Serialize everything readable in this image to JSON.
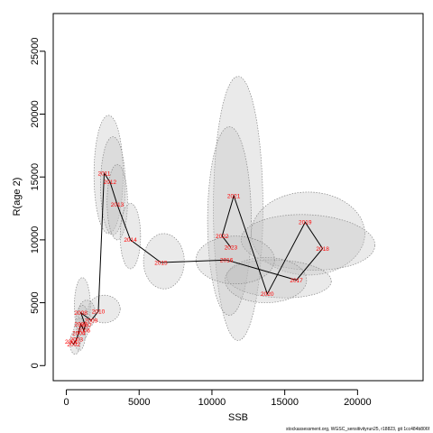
{
  "chart_data": {
    "type": "scatter",
    "title": "",
    "xlabel": "SSB",
    "ylabel": "R(age 2)",
    "xlim": [
      -900,
      24500
    ],
    "ylim": [
      -1200,
      28000
    ],
    "x_ticks": [
      0,
      5000,
      10000,
      15000,
      20000
    ],
    "y_ticks": [
      0,
      5000,
      10000,
      15000,
      20000,
      25000
    ],
    "grid": false,
    "connect_points": true,
    "colors": {
      "line": "#000000",
      "labels": "#ff0000",
      "ellipse_fill": "#bebebe",
      "ellipse_stroke": "#888888"
    },
    "points": [
      {
        "year": "2001",
        "x": 350,
        "y": 1900
      },
      {
        "year": "2002",
        "x": 500,
        "y": 1700
      },
      {
        "year": "2003",
        "x": 700,
        "y": 2100
      },
      {
        "year": "2004",
        "x": 850,
        "y": 2600
      },
      {
        "year": "2005",
        "x": 1000,
        "y": 3300
      },
      {
        "year": "2006",
        "x": 1200,
        "y": 2800
      },
      {
        "year": "2007",
        "x": 1300,
        "y": 3200
      },
      {
        "year": "2008",
        "x": 1000,
        "y": 4200
      },
      {
        "year": "2009",
        "x": 1700,
        "y": 3600
      },
      {
        "year": "2010",
        "x": 2200,
        "y": 4300
      },
      {
        "year": "2011",
        "x": 2600,
        "y": 15300
      },
      {
        "year": "2012",
        "x": 3000,
        "y": 14600
      },
      {
        "year": "2013",
        "x": 3500,
        "y": 12800
      },
      {
        "year": "2014",
        "x": 4400,
        "y": 10000
      },
      {
        "year": "2015",
        "x": 6500,
        "y": 8200
      },
      {
        "year": "2016",
        "x": 11000,
        "y": 8400
      },
      {
        "year": "2017",
        "x": 15800,
        "y": 6800
      },
      {
        "year": "2018",
        "x": 17600,
        "y": 9300
      },
      {
        "year": "2019",
        "x": 16400,
        "y": 11400
      },
      {
        "year": "2020",
        "x": 13800,
        "y": 5700
      },
      {
        "year": "2021",
        "x": 11500,
        "y": 13500
      },
      {
        "year": "2022",
        "x": 10700,
        "y": 10300
      },
      {
        "year": "2023",
        "x": 11300,
        "y": 9400
      }
    ],
    "uncertainty_ellipses": [
      {
        "cx": 11800,
        "cy": 12500,
        "rx": 1700,
        "ry": 10500,
        "tilt": 0.0
      },
      {
        "cx": 11200,
        "cy": 11500,
        "rx": 1500,
        "ry": 7500,
        "tilt": 0.0
      },
      {
        "cx": 16600,
        "cy": 10500,
        "rx": 3900,
        "ry": 3300,
        "tilt": 0.0
      },
      {
        "cx": 16600,
        "cy": 9800,
        "rx": 4600,
        "ry": 2200,
        "tilt": -0.05
      },
      {
        "cx": 14600,
        "cy": 6900,
        "rx": 3600,
        "ry": 1500,
        "tilt": -0.05
      },
      {
        "cx": 13700,
        "cy": 6800,
        "rx": 2800,
        "ry": 1800,
        "tilt": 0.0
      },
      {
        "cx": 11600,
        "cy": 8400,
        "rx": 2700,
        "ry": 1900,
        "tilt": 0.0
      },
      {
        "cx": 6700,
        "cy": 8300,
        "rx": 1400,
        "ry": 2200,
        "tilt": 0.0
      },
      {
        "cx": 2900,
        "cy": 15200,
        "rx": 1000,
        "ry": 4700,
        "tilt": 0.0
      },
      {
        "cx": 3200,
        "cy": 14300,
        "rx": 850,
        "ry": 3900,
        "tilt": 0.0
      },
      {
        "cx": 3500,
        "cy": 13000,
        "rx": 700,
        "ry": 3000,
        "tilt": 0.0
      },
      {
        "cx": 4400,
        "cy": 10300,
        "rx": 700,
        "ry": 2600,
        "tilt": 0.0
      },
      {
        "cx": 2600,
        "cy": 4500,
        "rx": 1100,
        "ry": 1100,
        "tilt": 0.0
      },
      {
        "cx": 1100,
        "cy": 4700,
        "rx": 550,
        "ry": 2300,
        "tilt": 0.0
      },
      {
        "cx": 1400,
        "cy": 4100,
        "rx": 600,
        "ry": 1100,
        "tilt": 0.0
      },
      {
        "cx": 1100,
        "cy": 3400,
        "rx": 450,
        "ry": 1400,
        "tilt": 0.0
      },
      {
        "cx": 900,
        "cy": 2500,
        "rx": 400,
        "ry": 1300,
        "tilt": 0.0
      },
      {
        "cx": 600,
        "cy": 1800,
        "rx": 350,
        "ry": 900,
        "tilt": 0.0
      }
    ]
  },
  "footer_note": "stockassessment.org, WGSC_sensitivityrun25, r18823, git 1cc484b806f"
}
